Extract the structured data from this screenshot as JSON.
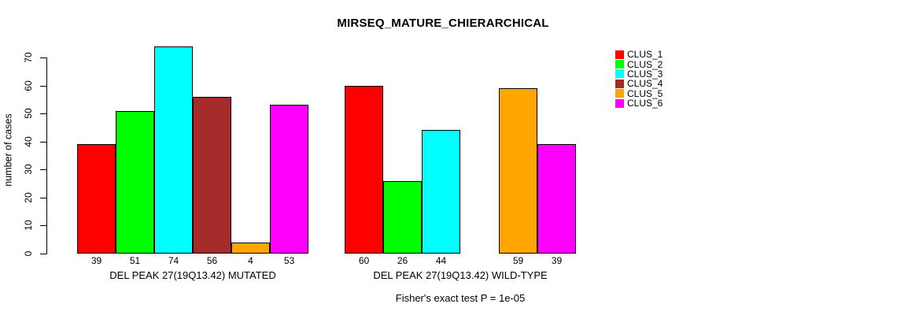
{
  "chart_data": {
    "type": "bar",
    "title": "MIRSEQ_MATURE_CHIERARCHICAL",
    "ylabel": "number of cases",
    "xlabel": "",
    "ylim": [
      0,
      70
    ],
    "yticks": [
      0,
      10,
      20,
      30,
      40,
      50,
      60,
      70
    ],
    "grid": false,
    "legend_position": "right-outside",
    "series": [
      "CLUS_1",
      "CLUS_2",
      "CLUS_3",
      "CLUS_4",
      "CLUS_5",
      "CLUS_6"
    ],
    "colors": [
      "#FF0000",
      "#00FF00",
      "#00FFFF",
      "#A52A2A",
      "#FFA500",
      "#FF00FF"
    ],
    "groups": [
      {
        "label": "DEL PEAK 27(19Q13.42) MUTATED",
        "values": [
          39,
          51,
          74,
          56,
          4,
          53
        ]
      },
      {
        "label": "DEL PEAK 27(19Q13.42) WILD-TYPE",
        "values": [
          60,
          26,
          44,
          0,
          59,
          39
        ]
      }
    ],
    "bar_value_labels": true,
    "zero_value_bars_hidden": true,
    "annotation": "Fisher's exact test P = 1e-05"
  }
}
